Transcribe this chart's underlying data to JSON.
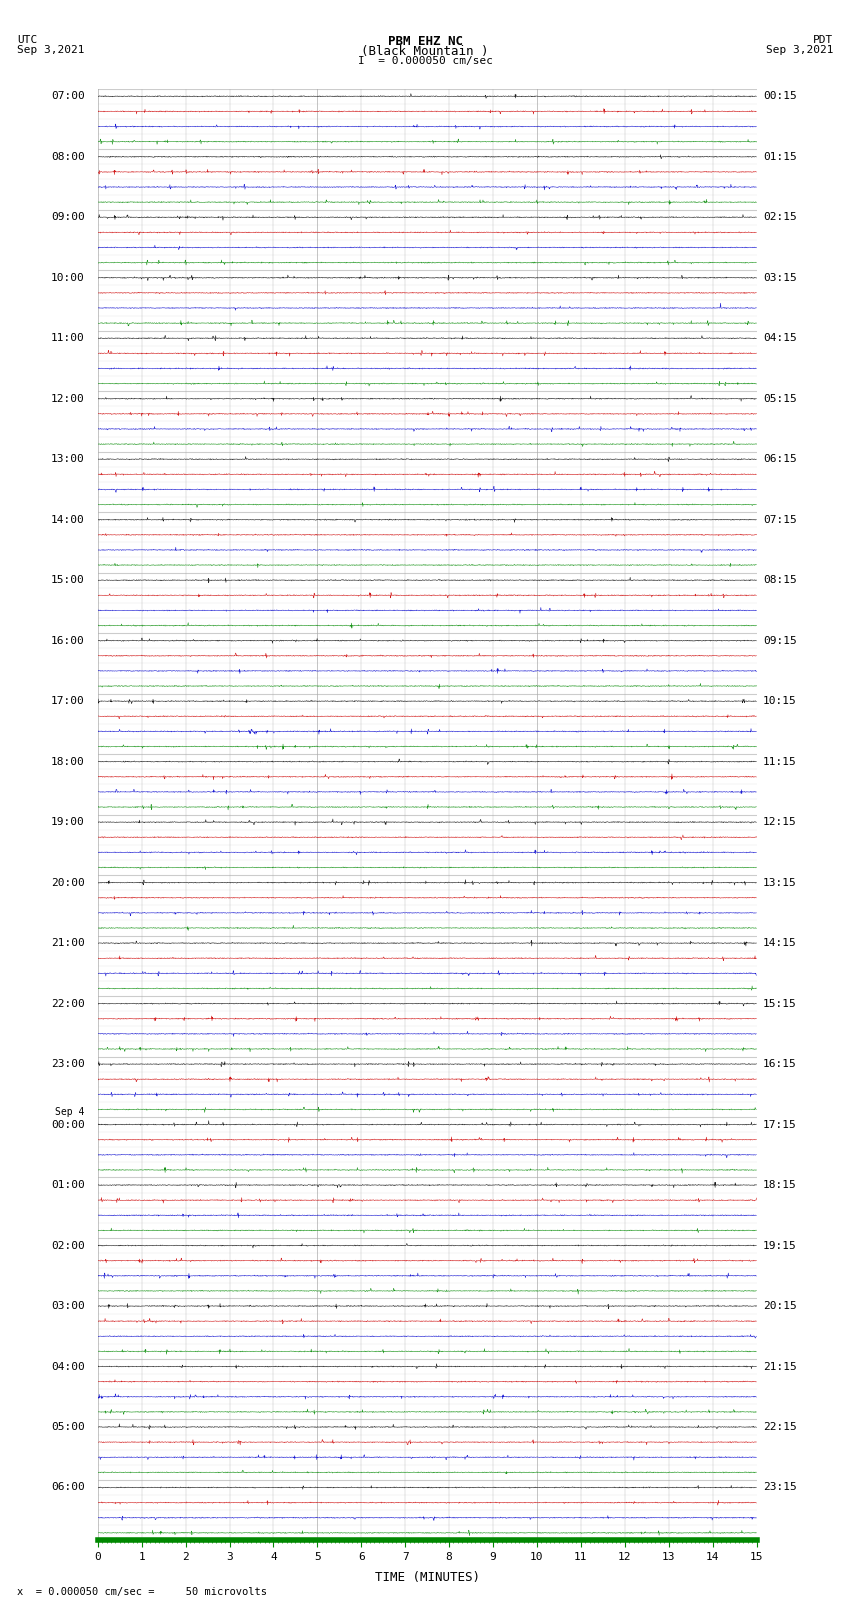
{
  "title_line1": "PBM EHZ NC",
  "title_line2": "(Black Mountain )",
  "scale_text": "I  = 0.000050 cm/sec",
  "left_label_top": "UTC",
  "left_label_date": "Sep 3,2021",
  "right_label_top": "PDT",
  "right_label_date": "Sep 3,2021",
  "bottom_label": "TIME (MINUTES)",
  "bottom_note": "x  = 0.000050 cm/sec =     50 microvolts",
  "sep4_label": "Sep 4",
  "utc_times_major": [
    "07:00",
    "08:00",
    "09:00",
    "10:00",
    "11:00",
    "12:00",
    "13:00",
    "14:00",
    "15:00",
    "16:00",
    "17:00",
    "18:00",
    "19:00",
    "20:00",
    "21:00",
    "22:00",
    "23:00",
    "00:00",
    "01:00",
    "02:00",
    "03:00",
    "04:00",
    "05:00",
    "06:00"
  ],
  "pdt_times_major": [
    "00:15",
    "01:15",
    "02:15",
    "03:15",
    "04:15",
    "05:15",
    "06:15",
    "07:15",
    "08:15",
    "09:15",
    "10:15",
    "11:15",
    "12:15",
    "13:15",
    "14:15",
    "15:15",
    "16:15",
    "17:15",
    "18:15",
    "19:15",
    "20:15",
    "21:15",
    "22:15",
    "23:15"
  ],
  "n_hours": 24,
  "traces_per_hour": 4,
  "trace_colors_cycle": [
    "#000000",
    "#cc0000",
    "#0000cc",
    "#008800"
  ],
  "trace_color_black": "#000000",
  "grid_minor_color": "#aaaaaa",
  "grid_major_color": "#555555",
  "bg_color": "#ffffff",
  "x_min": 0,
  "x_max": 15,
  "x_ticks_major": [
    0,
    1,
    2,
    3,
    4,
    5,
    6,
    7,
    8,
    9,
    10,
    11,
    12,
    13,
    14,
    15
  ],
  "green_bar_color": "#008800",
  "sep4_before_index": 17
}
